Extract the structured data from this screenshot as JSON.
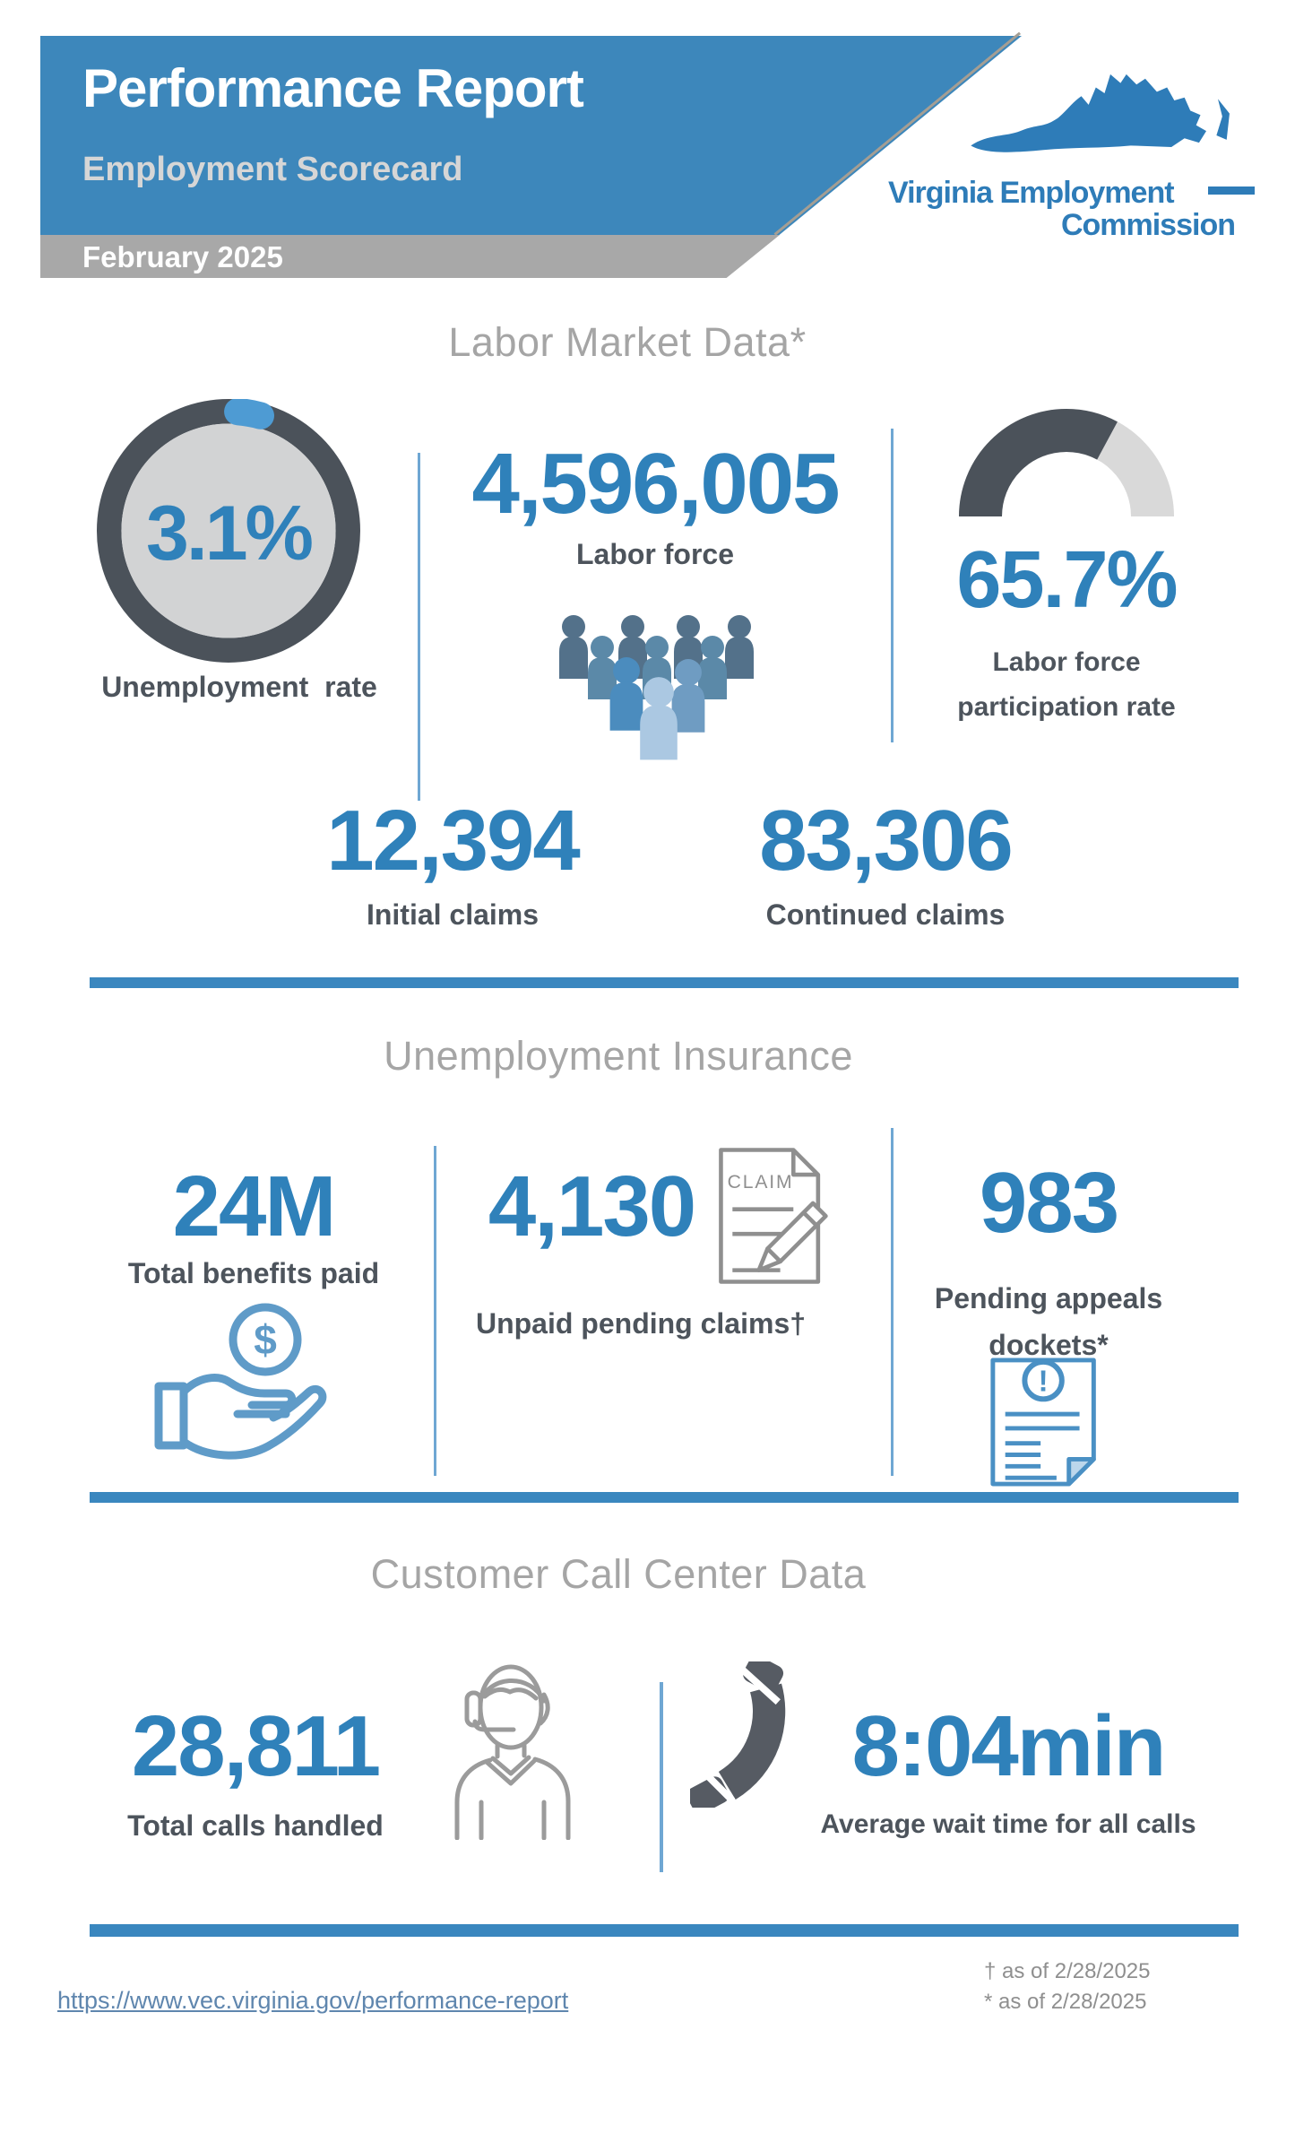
{
  "header": {
    "title": "Performance Report",
    "subtitle": "Employment Scorecard",
    "period": "February 2025",
    "logo_line1": "Virginia Employment",
    "logo_line2": "Commission"
  },
  "colors": {
    "accent_blue": "#2f81ba",
    "banner_blue": "#3d87bb",
    "banner_gray": "#a8a8a8",
    "gauge_dark": "#4b525a",
    "gauge_light": "#d9d9d9",
    "divider_blue": "#3a87bf"
  },
  "labor_market": {
    "title": "Labor Market Data*",
    "unemployment_rate": {
      "value": "3.1%",
      "percent": 3.1,
      "label": "Unemployment  rate"
    },
    "labor_force": {
      "value": "4,596,005",
      "label": "Labor force"
    },
    "participation": {
      "value": "65.7%",
      "percent": 65.7,
      "label_line1": "Labor force",
      "label_line2": "participation rate"
    },
    "initial_claims": {
      "value": "12,394",
      "label": "Initial claims"
    },
    "continued_claims": {
      "value": "83,306",
      "label": "Continued claims"
    }
  },
  "unemployment_insurance": {
    "title": "Unemployment Insurance",
    "benefits": {
      "value": "24M",
      "label": "Total benefits paid",
      "coin_symbol": "$"
    },
    "unpaid": {
      "value": "4,130",
      "label": "Unpaid pending claims†",
      "doc_text": "CLAIM"
    },
    "appeals": {
      "value": "983",
      "label_line1": "Pending appeals",
      "label_line2": "dockets*",
      "alert_symbol": "!"
    }
  },
  "call_center": {
    "title": "Customer Call Center Data",
    "calls": {
      "value": "28,811",
      "label": "Total calls handled"
    },
    "wait": {
      "value": "8:04min",
      "label": "Average wait time for all calls"
    }
  },
  "footer": {
    "link": "https://www.vec.virginia.gov/performance-report",
    "note_dagger": "† as of 2/28/2025",
    "note_star": "* as of 2/28/2025"
  }
}
